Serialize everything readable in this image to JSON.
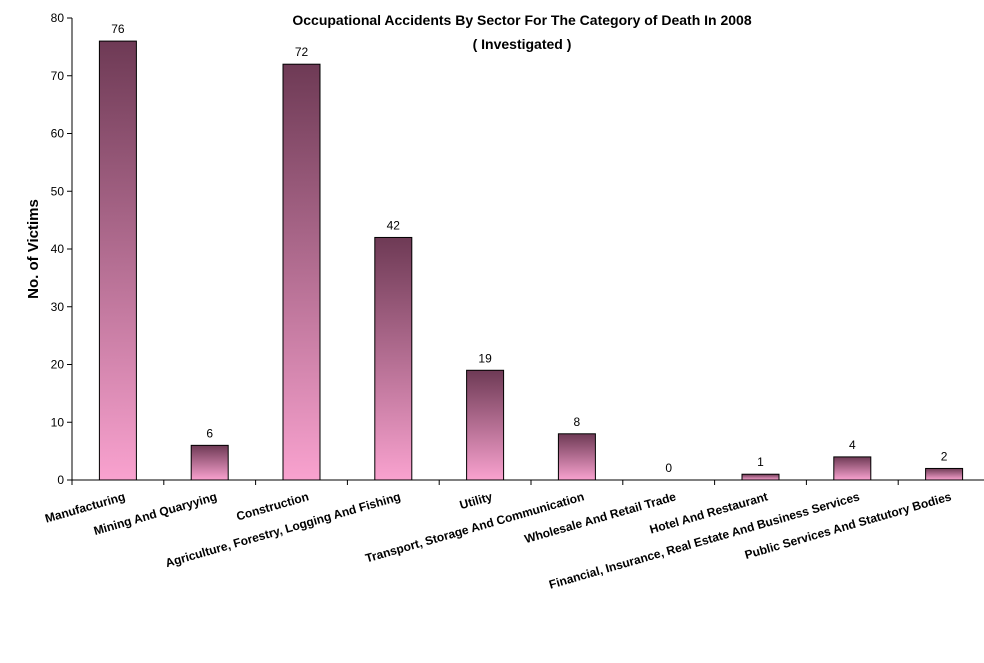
{
  "chart_data": {
    "type": "bar",
    "title": "Occupational Accidents By Sector For The Category of Death In 2008",
    "subtitle": "( Investigated )",
    "xlabel": "",
    "ylabel": "No. of Victims",
    "ylim": [
      0,
      80
    ],
    "yticks": [
      0,
      10,
      20,
      30,
      40,
      50,
      60,
      70,
      80
    ],
    "grid": false,
    "legend": "none",
    "categories": [
      "Manufacturing",
      "Mining And Quaryying",
      "Construction",
      "Agriculture, Forestry, Logging And Fishing",
      "Utility",
      "Transport, Storage And Communication",
      "Wholesale And Retail Trade",
      "Hotel And Restaurant",
      "Financial, Insurance, Real Estate And Business Services",
      "Public Services And Statutory Bodies"
    ],
    "values": [
      76,
      6,
      72,
      42,
      19,
      8,
      0,
      1,
      4,
      2
    ],
    "colors": {
      "bar_top": "#6e3a55",
      "bar_bottom": "#f9a2cf",
      "bar_stroke": "#000000",
      "axis": "#000000"
    }
  }
}
